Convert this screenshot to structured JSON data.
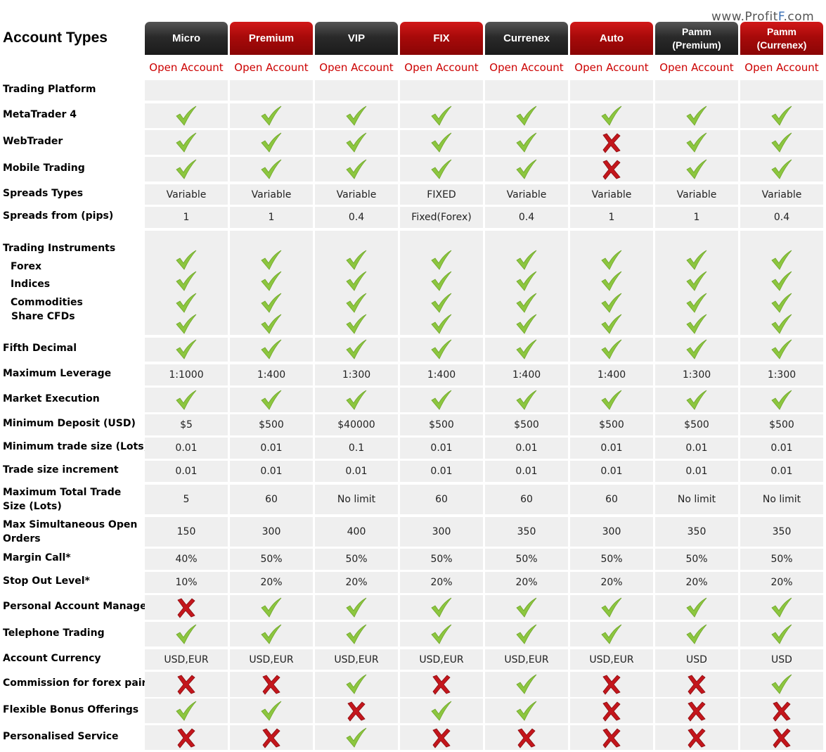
{
  "watermark": {
    "prefix": "www.Profit",
    "highlight": "F",
    "suffix": ".com"
  },
  "title": "Account Types",
  "open_label": "Open Account",
  "columns": [
    {
      "name": "Micro",
      "style": "dark"
    },
    {
      "name": "Premium",
      "style": "red"
    },
    {
      "name": "VIP",
      "style": "dark"
    },
    {
      "name": "FIX",
      "style": "red"
    },
    {
      "name": "Currenex",
      "style": "dark"
    },
    {
      "name": "Auto",
      "style": "red"
    },
    {
      "name": "Pamm\n(Premium)",
      "style": "dark"
    },
    {
      "name": "Pamm\n(Currenex)",
      "style": "red"
    }
  ],
  "rows": [
    {
      "label": "Trading Platform",
      "type": "blank"
    },
    {
      "label": "MetaTrader 4",
      "type": "icons",
      "values": [
        "check",
        "check",
        "check",
        "check",
        "check",
        "check",
        "check",
        "check"
      ]
    },
    {
      "label": "WebTrader",
      "type": "icons",
      "values": [
        "check",
        "check",
        "check",
        "check",
        "check",
        "cross",
        "check",
        "check"
      ]
    },
    {
      "label": "Mobile Trading",
      "type": "icons",
      "values": [
        "check",
        "check",
        "check",
        "check",
        "check",
        "cross",
        "check",
        "check"
      ]
    },
    {
      "label": "Spreads Types",
      "type": "text",
      "values": [
        "Variable",
        "Variable",
        "Variable",
        "FIXED",
        "Variable",
        "Variable",
        "Variable",
        "Variable"
      ]
    },
    {
      "label": "Spreads from (pips)",
      "type": "text",
      "values": [
        "1",
        "1",
        "0.4",
        "Fixed(Forex)",
        "0.4",
        "1",
        "1",
        "0.4"
      ]
    },
    {
      "label": "Trading Instruments",
      "sublabels": [
        "Forex",
        "Indices",
        "Commodities",
        "Share CFDs"
      ],
      "type": "multi",
      "values": [
        "check",
        "check",
        "check",
        "check",
        "check",
        "check",
        "check",
        "check"
      ]
    },
    {
      "label": "Fifth Decimal",
      "type": "icons",
      "values": [
        "check",
        "check",
        "check",
        "check",
        "check",
        "check",
        "check",
        "check"
      ]
    },
    {
      "label": "Maximum Leverage",
      "type": "text",
      "values": [
        "1:1000",
        "1:400",
        "1:300",
        "1:400",
        "1:400",
        "1:400",
        "1:300",
        "1:300"
      ]
    },
    {
      "label": "Market Execution",
      "type": "icons",
      "values": [
        "check",
        "check",
        "check",
        "check",
        "check",
        "check",
        "check",
        "check"
      ]
    },
    {
      "label": "Minimum Deposit (USD)",
      "type": "text",
      "values": [
        "$5",
        "$500",
        "$40000",
        "$500",
        "$500",
        "$500",
        "$500",
        "$500"
      ]
    },
    {
      "label": "Minimum trade size (Lots)",
      "type": "text",
      "values": [
        "0.01",
        "0.01",
        "0.1",
        "0.01",
        "0.01",
        "0.01",
        "0.01",
        "0.01"
      ]
    },
    {
      "label": "Trade size increment",
      "type": "text",
      "values": [
        "0.01",
        "0.01",
        "0.01",
        "0.01",
        "0.01",
        "0.01",
        "0.01",
        "0.01"
      ]
    },
    {
      "label": "Maximum Total Trade Size (Lots)",
      "type": "text",
      "values": [
        "5",
        "60",
        "No limit",
        "60",
        "60",
        "60",
        "No limit",
        "No limit"
      ]
    },
    {
      "label": "Max Simultaneous Open Orders",
      "type": "text",
      "values": [
        "150",
        "300",
        "400",
        "300",
        "350",
        "300",
        "350",
        "350"
      ]
    },
    {
      "label": "Margin Call*",
      "type": "text",
      "values": [
        "40%",
        "50%",
        "50%",
        "50%",
        "50%",
        "50%",
        "50%",
        "50%"
      ]
    },
    {
      "label": "Stop Out Level*",
      "type": "text",
      "values": [
        "10%",
        "20%",
        "20%",
        "20%",
        "20%",
        "20%",
        "20%",
        "20%"
      ]
    },
    {
      "label": "Personal Account Manager",
      "type": "icons",
      "values": [
        "cross",
        "check",
        "check",
        "check",
        "check",
        "check",
        "check",
        "check"
      ]
    },
    {
      "label": "Telephone Trading",
      "type": "icons",
      "values": [
        "check",
        "check",
        "check",
        "check",
        "check",
        "check",
        "check",
        "check"
      ]
    },
    {
      "label": "Account Currency",
      "type": "text",
      "values": [
        "USD,EUR",
        "USD,EUR",
        "USD,EUR",
        "USD,EUR",
        "USD,EUR",
        "USD,EUR",
        "USD",
        "USD"
      ]
    },
    {
      "label": "Commission for forex pairs",
      "type": "icons",
      "values": [
        "cross",
        "cross",
        "check",
        "cross",
        "check",
        "cross",
        "cross",
        "check"
      ]
    },
    {
      "label": "Flexible Bonus Offerings",
      "type": "icons",
      "values": [
        "check",
        "check",
        "cross",
        "check",
        "check",
        "cross",
        "cross",
        "cross"
      ]
    },
    {
      "label": "Personalised Service",
      "type": "icons",
      "values": [
        "cross",
        "cross",
        "check",
        "cross",
        "cross",
        "cross",
        "cross",
        "cross"
      ]
    }
  ],
  "colors": {
    "check": "#8cc63f",
    "cross": "#c4161c",
    "open_link": "#cc0000",
    "cell_bg": "#efefef"
  }
}
